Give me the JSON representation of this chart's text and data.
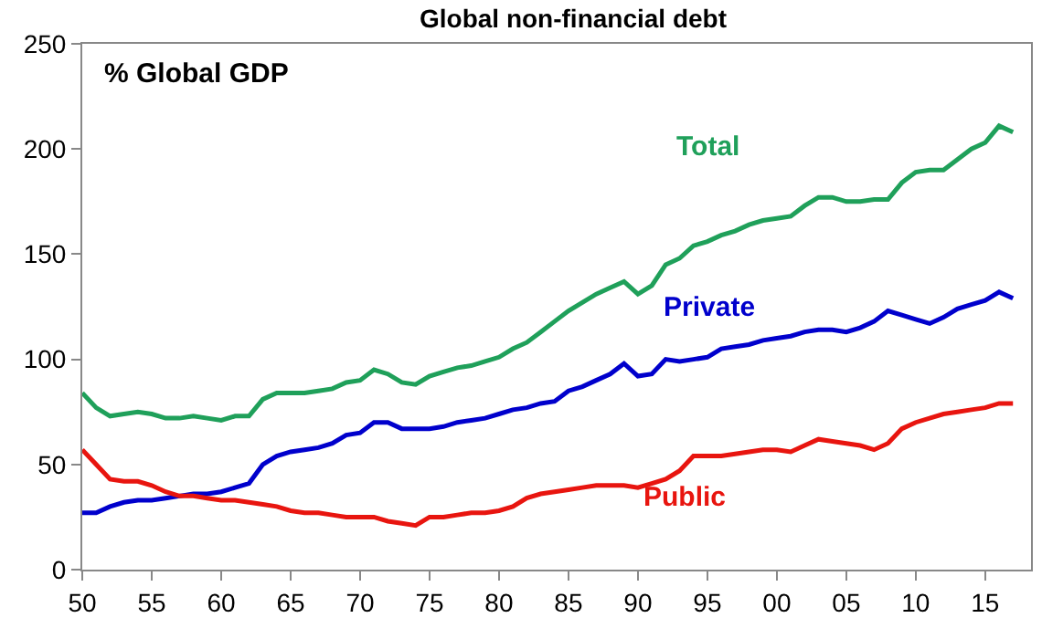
{
  "chart_data": {
    "type": "line",
    "title": "Global non-financial debt",
    "ylabel": "% Global GDP",
    "x": [
      1950,
      1951,
      1952,
      1953,
      1954,
      1955,
      1956,
      1957,
      1958,
      1959,
      1960,
      1961,
      1962,
      1963,
      1964,
      1965,
      1966,
      1967,
      1968,
      1969,
      1970,
      1971,
      1972,
      1973,
      1974,
      1975,
      1976,
      1977,
      1978,
      1979,
      1980,
      1981,
      1982,
      1983,
      1984,
      1985,
      1986,
      1987,
      1988,
      1989,
      1990,
      1991,
      1992,
      1993,
      1994,
      1995,
      1996,
      1997,
      1998,
      1999,
      2000,
      2001,
      2002,
      2003,
      2004,
      2005,
      2006,
      2007,
      2008,
      2009,
      2010,
      2011,
      2012,
      2013,
      2014,
      2015,
      2016,
      2017
    ],
    "series": [
      {
        "name": "Total",
        "color": "#1fa05a",
        "values": [
          84,
          77,
          73,
          74,
          75,
          74,
          72,
          72,
          73,
          72,
          71,
          73,
          73,
          81,
          84,
          84,
          84,
          85,
          86,
          89,
          90,
          95,
          93,
          89,
          88,
          92,
          94,
          96,
          97,
          99,
          101,
          105,
          108,
          113,
          118,
          123,
          127,
          131,
          134,
          137,
          131,
          135,
          145,
          148,
          154,
          156,
          159,
          161,
          164,
          166,
          167,
          168,
          173,
          177,
          177,
          175,
          175,
          176,
          176,
          184,
          189,
          190,
          190,
          195,
          200,
          203,
          211,
          208
        ]
      },
      {
        "name": "Private",
        "color": "#0000cc",
        "values": [
          27,
          27,
          30,
          32,
          33,
          33,
          34,
          35,
          36,
          36,
          37,
          39,
          41,
          50,
          54,
          56,
          57,
          58,
          60,
          64,
          65,
          70,
          70,
          67,
          67,
          67,
          68,
          70,
          71,
          72,
          74,
          76,
          77,
          79,
          80,
          85,
          87,
          90,
          93,
          98,
          92,
          93,
          100,
          99,
          100,
          101,
          105,
          106,
          107,
          109,
          110,
          111,
          113,
          114,
          114,
          113,
          115,
          118,
          123,
          121,
          119,
          117,
          120,
          124,
          126,
          128,
          132,
          129
        ]
      },
      {
        "name": "Public",
        "color": "#e8150f",
        "values": [
          57,
          50,
          43,
          42,
          42,
          40,
          37,
          35,
          35,
          34,
          33,
          33,
          32,
          31,
          30,
          28,
          27,
          27,
          26,
          25,
          25,
          25,
          23,
          22,
          21,
          25,
          25,
          26,
          27,
          27,
          28,
          30,
          34,
          36,
          37,
          38,
          39,
          40,
          40,
          40,
          39,
          41,
          43,
          47,
          54,
          54,
          54,
          55,
          56,
          57,
          57,
          56,
          59,
          62,
          61,
          60,
          59,
          57,
          60,
          67,
          70,
          72,
          74,
          75,
          76,
          77,
          79,
          79
        ]
      }
    ],
    "xlim": [
      1950,
      2018.3
    ],
    "xticks": [
      {
        "value": 1950,
        "label": "50"
      },
      {
        "value": 1955,
        "label": "55"
      },
      {
        "value": 1960,
        "label": "60"
      },
      {
        "value": 1965,
        "label": "65"
      },
      {
        "value": 1970,
        "label": "70"
      },
      {
        "value": 1975,
        "label": "75"
      },
      {
        "value": 1980,
        "label": "80"
      },
      {
        "value": 1985,
        "label": "85"
      },
      {
        "value": 1990,
        "label": "90"
      },
      {
        "value": 1995,
        "label": "95"
      },
      {
        "value": 2000,
        "label": "00"
      },
      {
        "value": 2005,
        "label": "05"
      },
      {
        "value": 2010,
        "label": "10"
      },
      {
        "value": 2015,
        "label": "15"
      }
    ],
    "ylim": [
      0,
      250
    ],
    "yticks": [
      0,
      50,
      100,
      150,
      200,
      250
    ],
    "legend": false,
    "marker": "none",
    "line_style": "solid"
  }
}
